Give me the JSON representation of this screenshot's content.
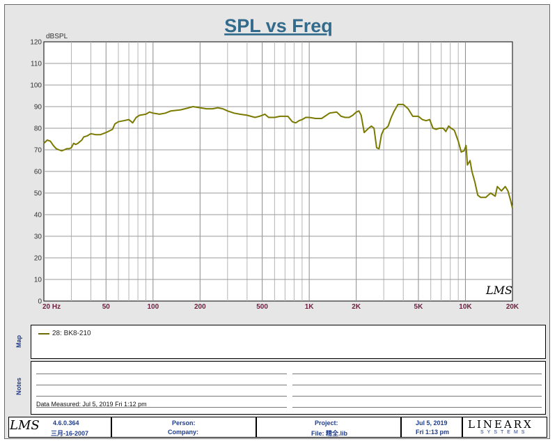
{
  "chart_data": {
    "type": "line",
    "title": "SPL vs Freq",
    "ylabel": "dBSPL",
    "xscale": "log",
    "xlim": [
      20,
      20000
    ],
    "ylim": [
      0,
      120
    ],
    "grid": true,
    "y_ticks": [
      "0",
      "10",
      "20",
      "30",
      "40",
      "50",
      "60",
      "70",
      "80",
      "90",
      "100",
      "110",
      "120"
    ],
    "x_tick_labels": [
      {
        "value": 20,
        "label": "20  Hz"
      },
      {
        "value": 50,
        "label": "50"
      },
      {
        "value": 100,
        "label": "100"
      },
      {
        "value": 200,
        "label": "200"
      },
      {
        "value": 500,
        "label": "500"
      },
      {
        "value": 1000,
        "label": "1K"
      },
      {
        "value": 2000,
        "label": "2K"
      },
      {
        "value": 5000,
        "label": "5K"
      },
      {
        "value": 10000,
        "label": "10K"
      },
      {
        "value": 20000,
        "label": "20K"
      }
    ],
    "series": [
      {
        "name": "28: BK8-210",
        "color": "#7a7a00",
        "points": [
          [
            20,
            73
          ],
          [
            21,
            74.5
          ],
          [
            22,
            74
          ],
          [
            23,
            72
          ],
          [
            24,
            70.5
          ],
          [
            25,
            70
          ],
          [
            26,
            69.5
          ],
          [
            27,
            70
          ],
          [
            28,
            70.5
          ],
          [
            29,
            70.5
          ],
          [
            30,
            71
          ],
          [
            31,
            73
          ],
          [
            32,
            72.5
          ],
          [
            33,
            73
          ],
          [
            35,
            74.5
          ],
          [
            36,
            76
          ],
          [
            38,
            76.5
          ],
          [
            40,
            77.5
          ],
          [
            43,
            77
          ],
          [
            46,
            77
          ],
          [
            50,
            78
          ],
          [
            55,
            79.5
          ],
          [
            57,
            82
          ],
          [
            60,
            83
          ],
          [
            65,
            83.5
          ],
          [
            70,
            84
          ],
          [
            74,
            82.5
          ],
          [
            78,
            85
          ],
          [
            82,
            86
          ],
          [
            90,
            86.5
          ],
          [
            95,
            87.5
          ],
          [
            100,
            87
          ],
          [
            110,
            86.5
          ],
          [
            120,
            87
          ],
          [
            130,
            88
          ],
          [
            150,
            88.5
          ],
          [
            170,
            89.5
          ],
          [
            180,
            90
          ],
          [
            200,
            89.5
          ],
          [
            220,
            89
          ],
          [
            240,
            89
          ],
          [
            260,
            89.5
          ],
          [
            280,
            89
          ],
          [
            300,
            88
          ],
          [
            330,
            87
          ],
          [
            360,
            86.5
          ],
          [
            400,
            86
          ],
          [
            450,
            85
          ],
          [
            480,
            85.5
          ],
          [
            520,
            86.5
          ],
          [
            550,
            85
          ],
          [
            600,
            85
          ],
          [
            650,
            85.5
          ],
          [
            700,
            85.5
          ],
          [
            730,
            85.5
          ],
          [
            780,
            83
          ],
          [
            820,
            82.5
          ],
          [
            860,
            83.5
          ],
          [
            900,
            84
          ],
          [
            950,
            85
          ],
          [
            1000,
            85
          ],
          [
            1100,
            84.5
          ],
          [
            1200,
            84.5
          ],
          [
            1350,
            87
          ],
          [
            1500,
            87.5
          ],
          [
            1600,
            85.5
          ],
          [
            1700,
            85
          ],
          [
            1800,
            85
          ],
          [
            1900,
            86
          ],
          [
            2000,
            87.5
          ],
          [
            2080,
            88
          ],
          [
            2150,
            86
          ],
          [
            2250,
            78
          ],
          [
            2400,
            80
          ],
          [
            2500,
            81
          ],
          [
            2600,
            80
          ],
          [
            2700,
            71
          ],
          [
            2800,
            70.5
          ],
          [
            2900,
            77
          ],
          [
            3000,
            79.5
          ],
          [
            3100,
            80
          ],
          [
            3200,
            81
          ],
          [
            3350,
            85
          ],
          [
            3500,
            88
          ],
          [
            3700,
            91
          ],
          [
            4000,
            91
          ],
          [
            4300,
            89
          ],
          [
            4600,
            85.5
          ],
          [
            5000,
            85.5
          ],
          [
            5300,
            84
          ],
          [
            5600,
            83.5
          ],
          [
            5900,
            84
          ],
          [
            6200,
            80
          ],
          [
            6500,
            79.5
          ],
          [
            6800,
            80
          ],
          [
            7200,
            80
          ],
          [
            7500,
            78.5
          ],
          [
            7800,
            81
          ],
          [
            8100,
            80
          ],
          [
            8500,
            79
          ],
          [
            9000,
            74
          ],
          [
            9400,
            69
          ],
          [
            9800,
            69.5
          ],
          [
            10100,
            72
          ],
          [
            10300,
            63
          ],
          [
            10700,
            65
          ],
          [
            11000,
            60
          ],
          [
            11500,
            55
          ],
          [
            12000,
            49
          ],
          [
            12500,
            48
          ],
          [
            13500,
            48
          ],
          [
            14500,
            50
          ],
          [
            15500,
            48.5
          ],
          [
            16000,
            53
          ],
          [
            17000,
            51
          ],
          [
            18000,
            53
          ],
          [
            18700,
            51
          ],
          [
            19400,
            47
          ],
          [
            20000,
            43
          ]
        ]
      }
    ]
  },
  "map_label": "Map",
  "legend": {
    "entry": "28: BK8-210"
  },
  "notes": {
    "label": "Notes",
    "data_measured": "Data Measured: Jul  5, 2019  Fri  1:12 pm"
  },
  "watermark": "LMS",
  "footer": {
    "logo": "LMS",
    "version": "4.6.0.364",
    "build_date": "三月-16-2007",
    "person_label": "Person:",
    "company_label": "Company:",
    "project_label": "Project:",
    "file_label": "File: 精全.lib",
    "date": "Jul  5, 2019",
    "time": "Fri  1:13 pm",
    "brand": "LINEARX",
    "brand_sub": "SYSTEMS"
  }
}
